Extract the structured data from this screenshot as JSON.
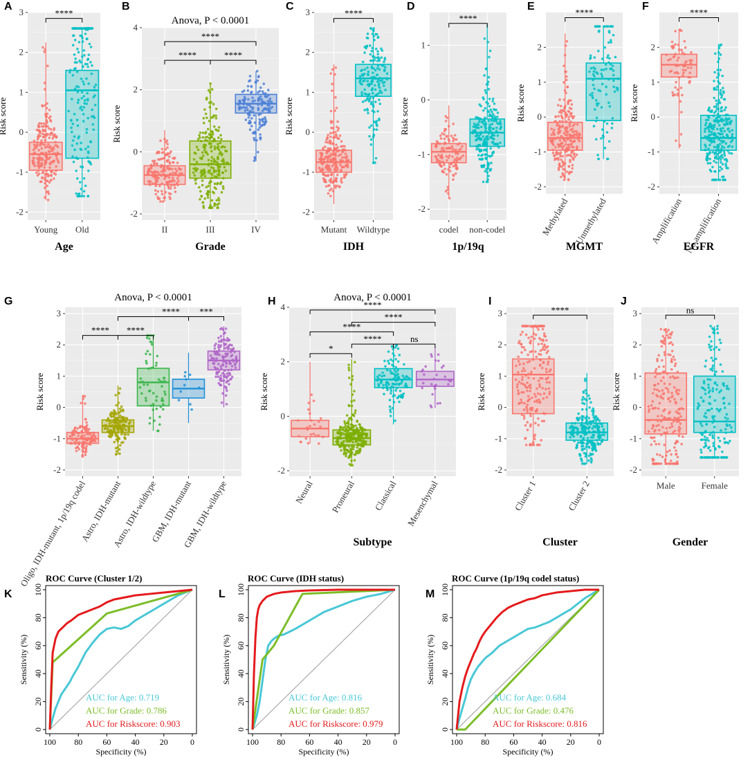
{
  "colors": {
    "red": "#F8766D",
    "teal": "#00BFC4",
    "blue": "#4D80D6",
    "green": "#7CAE00",
    "olive": "#A3A500",
    "green2": "#39B54A",
    "skyblue": "#1E90D8",
    "purple": "#B066C8",
    "roc_age": "#49C7D6",
    "roc_grade": "#7CBD28",
    "roc_risk": "#E41A1C"
  },
  "chart_data": [
    {
      "id": "A",
      "type": "box",
      "title": "",
      "xlabel": "Age",
      "ylabel": "Risk score",
      "ylim": [
        -2.2,
        3.0
      ],
      "yticks": [
        -2,
        -1,
        0,
        1,
        2,
        3
      ],
      "groups": [
        {
          "label": "Young",
          "color": "red",
          "q1": -0.95,
          "median": -0.55,
          "q3": -0.25,
          "min": -1.7,
          "max": 2.25,
          "n": 220
        },
        {
          "label": "Old",
          "color": "teal",
          "q1": -0.65,
          "median": 1.05,
          "q3": 1.55,
          "min": -1.6,
          "max": 2.6,
          "n": 180
        }
      ],
      "comparisons": [
        {
          "g1": 0,
          "g2": 1,
          "label": "****",
          "y": 2.85
        }
      ]
    },
    {
      "id": "B",
      "type": "box",
      "title": "Anova, P < 0.0001",
      "xlabel": "Grade",
      "ylabel": "Risk score",
      "ylim": [
        -2.2,
        4.0
      ],
      "yticks": [
        -2,
        0,
        2,
        4
      ],
      "groups": [
        {
          "label": "II",
          "color": "red",
          "q1": -1.05,
          "median": -0.75,
          "q3": -0.45,
          "min": -1.6,
          "max": 0.7,
          "n": 170
        },
        {
          "label": "III",
          "color": "green",
          "q1": -0.85,
          "median": -0.4,
          "q3": 0.35,
          "min": -1.8,
          "max": 2.2,
          "n": 230
        },
        {
          "label": "IV",
          "color": "blue",
          "q1": 1.25,
          "median": 1.55,
          "q3": 1.85,
          "min": -0.3,
          "max": 2.6,
          "n": 150
        }
      ],
      "comparisons": [
        {
          "g1": 0,
          "g2": 1,
          "label": "****",
          "y": 2.95
        },
        {
          "g1": 1,
          "g2": 2,
          "label": "****",
          "y": 2.95
        },
        {
          "g1": 0,
          "g2": 2,
          "label": "****",
          "y": 3.55
        }
      ]
    },
    {
      "id": "C",
      "type": "box",
      "title": "",
      "xlabel": "IDH",
      "ylabel": "Risk score",
      "ylim": [
        -2.2,
        3.0
      ],
      "yticks": [
        -2,
        -1,
        0,
        1,
        2,
        3
      ],
      "groups": [
        {
          "label": "Mutant",
          "color": "red",
          "q1": -1.0,
          "median": -0.75,
          "q3": -0.45,
          "min": -1.8,
          "max": 1.7,
          "n": 230
        },
        {
          "label": "Wildtype",
          "color": "teal",
          "q1": 0.9,
          "median": 1.35,
          "q3": 1.7,
          "min": -0.8,
          "max": 2.6,
          "n": 170
        }
      ],
      "comparisons": [
        {
          "g1": 0,
          "g2": 1,
          "label": "****",
          "y": 2.85
        }
      ]
    },
    {
      "id": "D",
      "type": "box",
      "title": "",
      "xlabel": "1p/19q",
      "ylabel": "Risk score",
      "ylim": [
        -2.2,
        1.6
      ],
      "yticks": [
        -2,
        -1,
        0,
        1
      ],
      "groups": [
        {
          "label": "codel",
          "color": "red",
          "q1": -1.15,
          "median": -0.95,
          "q3": -0.8,
          "min": -1.8,
          "max": -0.1,
          "n": 120
        },
        {
          "label": "non-codel",
          "color": "teal",
          "q1": -0.85,
          "median": -0.6,
          "q3": -0.35,
          "min": -1.5,
          "max": 1.4,
          "n": 220
        }
      ],
      "comparisons": [
        {
          "g1": 0,
          "g2": 1,
          "label": "****",
          "y": 1.4
        }
      ]
    },
    {
      "id": "E",
      "type": "box",
      "title": "",
      "xlabel": "MGMT",
      "ylabel": "Risk score",
      "ylim": [
        -2.2,
        3.0
      ],
      "yticks": [
        -2,
        -1,
        0,
        1,
        2
      ],
      "groups": [
        {
          "label": "Methylated",
          "color": "red",
          "q1": -0.95,
          "median": -0.6,
          "q3": -0.15,
          "min": -1.8,
          "max": 2.4,
          "n": 230
        },
        {
          "label": "Unmethylated",
          "color": "teal",
          "q1": -0.1,
          "median": 1.1,
          "q3": 1.55,
          "min": -1.2,
          "max": 2.6,
          "n": 110
        }
      ],
      "comparisons": [
        {
          "g1": 0,
          "g2": 1,
          "label": "****",
          "y": 2.85
        }
      ]
    },
    {
      "id": "F",
      "type": "box",
      "title": "",
      "xlabel": "EGFR",
      "ylabel": "Risk score",
      "ylim": [
        -2.2,
        3.0
      ],
      "yticks": [
        -2,
        -1,
        0,
        1,
        2
      ],
      "groups": [
        {
          "label": "Amplification",
          "color": "red",
          "q1": 1.15,
          "median": 1.5,
          "q3": 1.8,
          "min": -0.9,
          "max": 2.5,
          "n": 70
        },
        {
          "label": "No amplification",
          "color": "teal",
          "q1": -0.95,
          "median": -0.6,
          "q3": 0.05,
          "min": -1.8,
          "max": 2.1,
          "n": 270
        }
      ],
      "comparisons": [
        {
          "g1": 0,
          "g2": 1,
          "label": "****",
          "y": 2.85
        }
      ]
    },
    {
      "id": "G",
      "type": "box",
      "title": "Anova, P < 0.0001",
      "xlabel": "",
      "ylabel": "Risk score",
      "ylim": [
        -2.2,
        3.2
      ],
      "yticks": [
        -2,
        -1,
        0,
        1,
        2,
        3
      ],
      "groups": [
        {
          "label": "Oligo, IDH-mutant, 1p/19q codel",
          "color": "red",
          "q1": -1.15,
          "median": -1.0,
          "q3": -0.8,
          "min": -1.6,
          "max": 0.4,
          "n": 120
        },
        {
          "label": "Astro, IDH-mutant",
          "color": "olive",
          "q1": -0.8,
          "median": -0.6,
          "q3": -0.4,
          "min": -1.5,
          "max": 0.7,
          "n": 160
        },
        {
          "label": "Astro, IDH-wildtype",
          "color": "green2",
          "q1": 0.05,
          "median": 0.8,
          "q3": 1.25,
          "min": -0.75,
          "max": 2.3,
          "n": 60
        },
        {
          "label": "GBM, IDH-mutant",
          "color": "skyblue",
          "q1": 0.3,
          "median": 0.6,
          "q3": 0.9,
          "min": -0.5,
          "max": 1.75,
          "n": 10
        },
        {
          "label": "GBM, IDH-wildtype",
          "color": "purple",
          "q1": 1.2,
          "median": 1.5,
          "q3": 1.8,
          "min": 0.0,
          "max": 2.6,
          "n": 150
        }
      ],
      "comparisons": [
        {
          "g1": 0,
          "g2": 1,
          "label": "****",
          "y": 2.3
        },
        {
          "g1": 1,
          "g2": 2,
          "label": "****",
          "y": 2.3
        },
        {
          "g1": 1,
          "g2": 4,
          "label": "****",
          "y": 2.9
        },
        {
          "g1": 3,
          "g2": 4,
          "label": "***",
          "y": 2.9
        }
      ]
    },
    {
      "id": "H",
      "type": "box",
      "title": "Anova, P < 0.0001",
      "xlabel": "Subtype",
      "ylabel": "Risk score",
      "ylim": [
        -2.2,
        4.0
      ],
      "yticks": [
        -2,
        0,
        2,
        4
      ],
      "groups": [
        {
          "label": "Neural",
          "color": "red",
          "q1": -0.75,
          "median": -0.45,
          "q3": -0.15,
          "min": -1.0,
          "max": 2.0,
          "n": 25
        },
        {
          "label": "Proneural",
          "color": "green",
          "q1": -1.05,
          "median": -0.8,
          "q3": -0.5,
          "min": -1.8,
          "max": 2.1,
          "n": 260
        },
        {
          "label": "Classical",
          "color": "teal",
          "q1": 1.05,
          "median": 1.35,
          "q3": 1.75,
          "min": -0.3,
          "max": 2.6,
          "n": 120
        },
        {
          "label": "Mesenchymal",
          "color": "purple",
          "q1": 1.1,
          "median": 1.35,
          "q3": 1.65,
          "min": 0.3,
          "max": 2.5,
          "n": 30
        }
      ],
      "comparisons": [
        {
          "g1": 0,
          "g2": 1,
          "label": "*",
          "y": 2.3
        },
        {
          "g1": 1,
          "g2": 2,
          "label": "****",
          "y": 2.65
        },
        {
          "g1": 2,
          "g2": 3,
          "label": "ns",
          "y": 2.65
        },
        {
          "g1": 0,
          "g2": 2,
          "label": "****",
          "y": 3.1
        },
        {
          "g1": 1,
          "g2": 3,
          "label": "****",
          "y": 3.45
        },
        {
          "g1": 0,
          "g2": 3,
          "label": "****",
          "y": 3.9
        }
      ]
    },
    {
      "id": "I",
      "type": "box",
      "title": "",
      "xlabel": "Cluster",
      "ylabel": "Risk score",
      "ylim": [
        -2.2,
        3.2
      ],
      "yticks": [
        -2,
        -1,
        0,
        1,
        2,
        3
      ],
      "groups": [
        {
          "label": "Cluster 1",
          "color": "red",
          "q1": -0.2,
          "median": 1.05,
          "q3": 1.55,
          "min": -1.2,
          "max": 2.6,
          "n": 220
        },
        {
          "label": "Cluster 2",
          "color": "teal",
          "q1": -1.05,
          "median": -0.8,
          "q3": -0.5,
          "min": -1.8,
          "max": 1.1,
          "n": 230
        }
      ],
      "comparisons": [
        {
          "g1": 0,
          "g2": 1,
          "label": "****",
          "y": 2.95
        }
      ]
    },
    {
      "id": "J",
      "type": "box",
      "title": "",
      "xlabel": "Gender",
      "ylabel": "Risk score",
      "ylim": [
        -2.2,
        3.2
      ],
      "yticks": [
        -2,
        -1,
        0,
        1,
        2,
        3
      ],
      "groups": [
        {
          "label": "Male",
          "color": "red",
          "q1": -0.85,
          "median": -0.4,
          "q3": 1.1,
          "min": -1.8,
          "max": 2.5,
          "n": 230
        },
        {
          "label": "Female",
          "color": "teal",
          "q1": -0.8,
          "median": -0.45,
          "q3": 1.0,
          "min": -1.6,
          "max": 2.6,
          "n": 190
        }
      ],
      "comparisons": [
        {
          "g1": 0,
          "g2": 1,
          "label": "ns",
          "y": 2.95
        }
      ]
    },
    {
      "id": "K",
      "type": "line",
      "title": "ROC Curve (Cluster 1/2)",
      "xlabel": "Specificity (%)",
      "ylabel": "Sensitivity (%)",
      "xlim": [
        100,
        0
      ],
      "ylim": [
        0,
        100
      ],
      "xticks": [
        100,
        80,
        60,
        40,
        20,
        0
      ],
      "yticks": [
        0,
        20,
        40,
        60,
        80,
        100
      ],
      "legend": [
        "AUC for Age: 0.719",
        "AUC for Grade: 0.786",
        "AUC for Riskscore: 0.903"
      ],
      "series": [
        {
          "name": "Age",
          "color": "roc_age",
          "x": [
            100,
            98,
            96,
            94,
            92,
            90,
            88,
            86,
            84,
            80,
            75,
            70,
            65,
            60,
            55,
            50,
            45,
            40,
            35,
            30,
            25,
            20,
            15,
            10,
            5,
            0
          ],
          "y": [
            0,
            8,
            15,
            20,
            25,
            28,
            31,
            34,
            38,
            45,
            55,
            62,
            68,
            72,
            73,
            72,
            74,
            78,
            81,
            84,
            87,
            90,
            93,
            96,
            98,
            100
          ]
        },
        {
          "name": "Grade",
          "color": "roc_grade",
          "x": [
            100,
            98,
            60,
            0
          ],
          "y": [
            0,
            48,
            83,
            100
          ]
        },
        {
          "name": "Riskscore",
          "color": "roc_risk",
          "x": [
            100,
            99,
            98,
            96,
            94,
            92,
            90,
            88,
            85,
            80,
            75,
            70,
            65,
            60,
            55,
            50,
            45,
            40,
            30,
            20,
            10,
            0
          ],
          "y": [
            0,
            30,
            55,
            65,
            70,
            72,
            74,
            76,
            78,
            82,
            84,
            86,
            88,
            91,
            93,
            94,
            95,
            96,
            97,
            98,
            99,
            100
          ]
        }
      ]
    },
    {
      "id": "L",
      "type": "line",
      "title": "ROC Curve (IDH status)",
      "xlabel": "Specificity (%)",
      "ylabel": "Sensitivity (%)",
      "xlim": [
        100,
        0
      ],
      "ylim": [
        0,
        100
      ],
      "xticks": [
        100,
        80,
        60,
        40,
        20,
        0
      ],
      "yticks": [
        0,
        20,
        40,
        60,
        80,
        100
      ],
      "legend": [
        "AUC for Age: 0.816",
        "AUC for Grade: 0.857",
        "AUC for Riskscore: 0.979"
      ],
      "series": [
        {
          "name": "Age",
          "color": "roc_age",
          "x": [
            100,
            97,
            95,
            93,
            91,
            89,
            87,
            85,
            82,
            78,
            74,
            70,
            65,
            60,
            55,
            50,
            45,
            40,
            35,
            30,
            20,
            10,
            0
          ],
          "y": [
            0,
            10,
            20,
            35,
            50,
            60,
            63,
            65,
            67,
            68,
            70,
            72,
            75,
            78,
            81,
            84,
            86,
            88,
            90,
            92,
            95,
            97,
            100
          ]
        },
        {
          "name": "Grade",
          "color": "roc_grade",
          "x": [
            100,
            93,
            85,
            65,
            0
          ],
          "y": [
            0,
            50,
            60,
            97,
            100
          ]
        },
        {
          "name": "Riskscore",
          "color": "roc_risk",
          "x": [
            100,
            99,
            98,
            97,
            96,
            95,
            93,
            90,
            85,
            80,
            70,
            60,
            40,
            20,
            0
          ],
          "y": [
            0,
            40,
            65,
            80,
            86,
            89,
            92,
            95,
            97,
            98,
            99,
            99.5,
            100,
            100,
            100
          ]
        }
      ]
    },
    {
      "id": "M",
      "type": "line",
      "title": "ROC Curve (1p/19q codel status)",
      "xlabel": "Specificity (%)",
      "ylabel": "Sensitivity (%)",
      "xlim": [
        100,
        0
      ],
      "ylim": [
        0,
        100
      ],
      "xticks": [
        100,
        80,
        60,
        40,
        20,
        0
      ],
      "yticks": [
        0,
        20,
        40,
        60,
        80,
        100
      ],
      "legend": [
        "AUC for Age: 0.684",
        "AUC for Grade: 0.476",
        "AUC for Riskscore: 0.816"
      ],
      "series": [
        {
          "name": "Age",
          "color": "roc_age",
          "x": [
            100,
            98,
            96,
            94,
            92,
            90,
            88,
            85,
            80,
            75,
            70,
            65,
            60,
            55,
            50,
            45,
            40,
            35,
            30,
            25,
            20,
            15,
            10,
            5,
            0
          ],
          "y": [
            0,
            8,
            15,
            22,
            30,
            36,
            40,
            45,
            51,
            55,
            60,
            63,
            66,
            69,
            72,
            73,
            75,
            77,
            80,
            83,
            86,
            90,
            94,
            97,
            100
          ]
        },
        {
          "name": "Grade",
          "color": "roc_grade",
          "x": [
            100,
            94,
            0
          ],
          "y": [
            0,
            0,
            100
          ]
        },
        {
          "name": "Riskscore",
          "color": "roc_risk",
          "x": [
            100,
            99,
            98,
            96,
            94,
            92,
            90,
            88,
            86,
            84,
            82,
            80,
            76,
            72,
            68,
            64,
            60,
            55,
            50,
            45,
            40,
            35,
            30,
            20,
            10,
            0
          ],
          "y": [
            0,
            10,
            20,
            30,
            38,
            44,
            49,
            54,
            58,
            63,
            67,
            70,
            75,
            80,
            84,
            87,
            89,
            91,
            93,
            94,
            96,
            97,
            98,
            99,
            100,
            100
          ]
        }
      ]
    }
  ]
}
